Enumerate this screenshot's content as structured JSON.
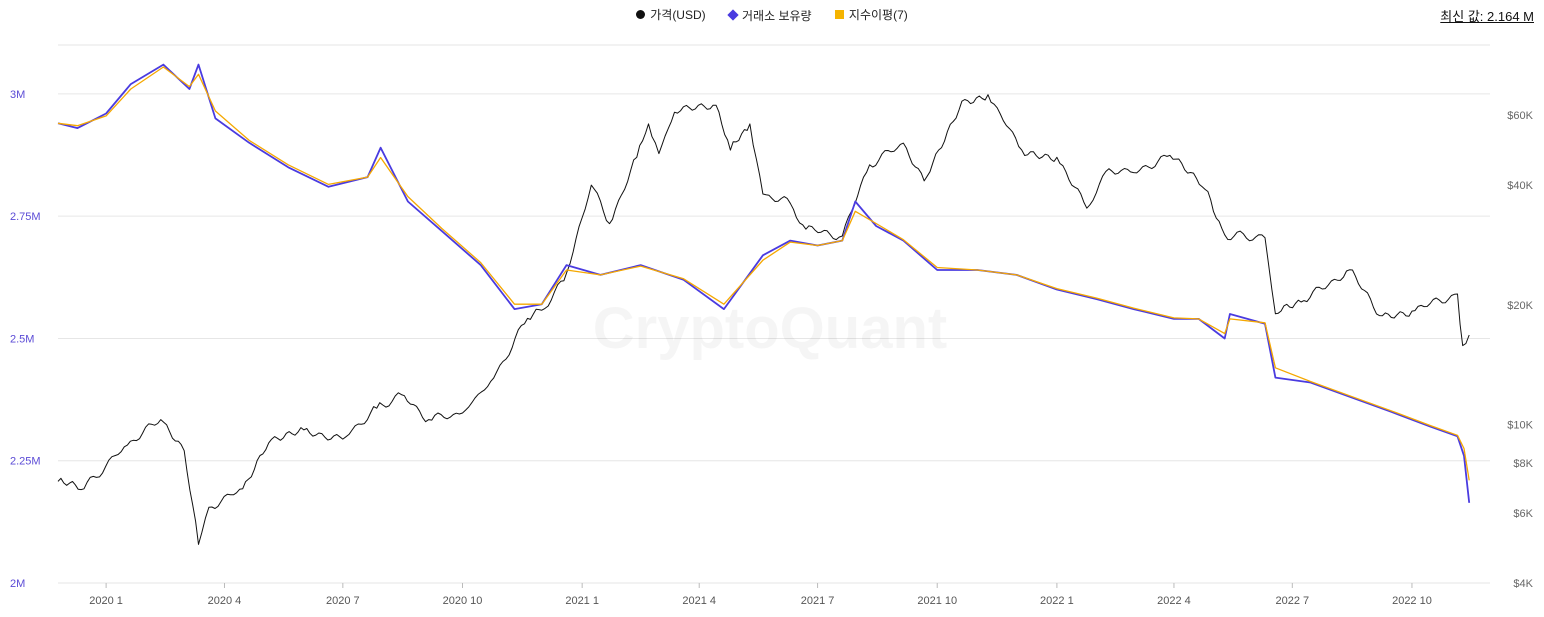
{
  "legend": {
    "price_label": "가격(USD)",
    "reserve_label": "거래소 보유량",
    "ema_label": "지수이평(7)"
  },
  "latest_value": "최신 값: 2.164 M",
  "watermark": "CryptoQuant",
  "colors": {
    "price": "#111111",
    "reserve": "#4a3be0",
    "ema": "#f5a800",
    "grid": "#e6e6e6",
    "left_axis": "#5b4bd6"
  },
  "chart_data": {
    "type": "line",
    "x_ticks": [
      "2020 1",
      "2020 4",
      "2020 7",
      "2020 10",
      "2021 1",
      "2021 4",
      "2021 7",
      "2021 10",
      "2022 1",
      "2022 4",
      "2022 7",
      "2022 10"
    ],
    "y_left": {
      "ticks": [
        "2M",
        "2.25M",
        "2.5M",
        "2.75M",
        "3M"
      ],
      "range": [
        2000000,
        3100000
      ]
    },
    "y_right": {
      "ticks": [
        "$4K",
        "$6K",
        "$8K",
        "$10K",
        "$20K",
        "$40K",
        "$60K"
      ],
      "scale": "log",
      "range": [
        4000,
        90000
      ]
    },
    "x_range": [
      "2019-11-25",
      "2022-11-30"
    ],
    "series": [
      {
        "name": "가격(USD)",
        "axis": "right",
        "points": [
          [
            "2019-11-25",
            7200
          ],
          [
            "2019-12-15",
            6900
          ],
          [
            "2020-01-15",
            8800
          ],
          [
            "2020-02-12",
            10300
          ],
          [
            "2020-03-01",
            8600
          ],
          [
            "2020-03-12",
            5000
          ],
          [
            "2020-03-20",
            6200
          ],
          [
            "2020-04-15",
            6900
          ],
          [
            "2020-05-05",
            9000
          ],
          [
            "2020-06-01",
            9700
          ],
          [
            "2020-07-01",
            9200
          ],
          [
            "2020-07-27",
            11000
          ],
          [
            "2020-08-15",
            11900
          ],
          [
            "2020-09-05",
            10300
          ],
          [
            "2020-10-01",
            10700
          ],
          [
            "2020-10-25",
            13100
          ],
          [
            "2020-11-20",
            18500
          ],
          [
            "2020-12-01",
            19400
          ],
          [
            "2020-12-18",
            23000
          ],
          [
            "2021-01-08",
            40000
          ],
          [
            "2021-01-22",
            32000
          ],
          [
            "2021-02-12",
            47000
          ],
          [
            "2021-02-21",
            57000
          ],
          [
            "2021-03-01",
            48000
          ],
          [
            "2021-03-13",
            61000
          ],
          [
            "2021-04-14",
            63500
          ],
          [
            "2021-04-25",
            49000
          ],
          [
            "2021-05-10",
            57000
          ],
          [
            "2021-05-20",
            38000
          ],
          [
            "2021-06-10",
            36000
          ],
          [
            "2021-06-22",
            31000
          ],
          [
            "2021-07-20",
            29800
          ],
          [
            "2021-08-10",
            45000
          ],
          [
            "2021-09-05",
            51000
          ],
          [
            "2021-09-21",
            41000
          ],
          [
            "2021-10-20",
            65000
          ],
          [
            "2021-11-09",
            67500
          ],
          [
            "2021-12-05",
            49000
          ],
          [
            "2022-01-01",
            47000
          ],
          [
            "2022-01-24",
            35000
          ],
          [
            "2022-02-10",
            44000
          ],
          [
            "2022-03-01",
            43000
          ],
          [
            "2022-03-29",
            47500
          ],
          [
            "2022-04-25",
            39000
          ],
          [
            "2022-05-10",
            30000
          ],
          [
            "2022-06-10",
            29500
          ],
          [
            "2022-06-18",
            19000
          ],
          [
            "2022-07-10",
            20500
          ],
          [
            "2022-08-14",
            24500
          ],
          [
            "2022-09-06",
            18800
          ],
          [
            "2022-10-01",
            19300
          ],
          [
            "2022-11-05",
            21300
          ],
          [
            "2022-11-09",
            15800
          ],
          [
            "2022-11-14",
            16800
          ]
        ]
      },
      {
        "name": "거래소 보유량",
        "axis": "left",
        "points": [
          [
            "2019-11-25",
            2940000
          ],
          [
            "2019-12-10",
            2930000
          ],
          [
            "2020-01-01",
            2960000
          ],
          [
            "2020-01-20",
            3020000
          ],
          [
            "2020-02-14",
            3060000
          ],
          [
            "2020-03-05",
            3010000
          ],
          [
            "2020-03-12",
            3060000
          ],
          [
            "2020-03-25",
            2950000
          ],
          [
            "2020-04-20",
            2900000
          ],
          [
            "2020-05-20",
            2850000
          ],
          [
            "2020-06-20",
            2810000
          ],
          [
            "2020-07-20",
            2830000
          ],
          [
            "2020-07-30",
            2890000
          ],
          [
            "2020-08-20",
            2780000
          ],
          [
            "2020-09-15",
            2720000
          ],
          [
            "2020-10-15",
            2650000
          ],
          [
            "2020-11-10",
            2560000
          ],
          [
            "2020-12-01",
            2570000
          ],
          [
            "2020-12-20",
            2650000
          ],
          [
            "2021-01-15",
            2630000
          ],
          [
            "2021-02-15",
            2650000
          ],
          [
            "2021-03-20",
            2620000
          ],
          [
            "2021-04-20",
            2560000
          ],
          [
            "2021-05-20",
            2670000
          ],
          [
            "2021-06-10",
            2700000
          ],
          [
            "2021-07-01",
            2690000
          ],
          [
            "2021-07-20",
            2700000
          ],
          [
            "2021-07-30",
            2780000
          ],
          [
            "2021-08-15",
            2730000
          ],
          [
            "2021-09-05",
            2700000
          ],
          [
            "2021-10-01",
            2640000
          ],
          [
            "2021-11-01",
            2640000
          ],
          [
            "2021-12-01",
            2630000
          ],
          [
            "2022-01-01",
            2600000
          ],
          [
            "2022-02-01",
            2580000
          ],
          [
            "2022-03-01",
            2560000
          ],
          [
            "2022-04-01",
            2540000
          ],
          [
            "2022-04-20",
            2540000
          ],
          [
            "2022-05-10",
            2500000
          ],
          [
            "2022-05-14",
            2550000
          ],
          [
            "2022-06-10",
            2530000
          ],
          [
            "2022-06-18",
            2420000
          ],
          [
            "2022-07-15",
            2410000
          ],
          [
            "2022-08-15",
            2380000
          ],
          [
            "2022-09-15",
            2350000
          ],
          [
            "2022-10-15",
            2320000
          ],
          [
            "2022-11-05",
            2300000
          ],
          [
            "2022-11-10",
            2260000
          ],
          [
            "2022-11-14",
            2164000
          ]
        ]
      },
      {
        "name": "지수이평(7)",
        "axis": "left",
        "points": [
          [
            "2019-11-25",
            2940000
          ],
          [
            "2019-12-10",
            2935000
          ],
          [
            "2020-01-01",
            2955000
          ],
          [
            "2020-01-20",
            3010000
          ],
          [
            "2020-02-14",
            3055000
          ],
          [
            "2020-03-05",
            3015000
          ],
          [
            "2020-03-12",
            3040000
          ],
          [
            "2020-03-25",
            2965000
          ],
          [
            "2020-04-20",
            2905000
          ],
          [
            "2020-05-20",
            2855000
          ],
          [
            "2020-06-20",
            2815000
          ],
          [
            "2020-07-20",
            2830000
          ],
          [
            "2020-07-30",
            2870000
          ],
          [
            "2020-08-20",
            2790000
          ],
          [
            "2020-09-15",
            2725000
          ],
          [
            "2020-10-15",
            2655000
          ],
          [
            "2020-11-10",
            2570000
          ],
          [
            "2020-12-01",
            2570000
          ],
          [
            "2020-12-20",
            2640000
          ],
          [
            "2021-01-15",
            2630000
          ],
          [
            "2021-02-15",
            2648000
          ],
          [
            "2021-03-20",
            2622000
          ],
          [
            "2021-04-20",
            2570000
          ],
          [
            "2021-05-20",
            2660000
          ],
          [
            "2021-06-10",
            2697000
          ],
          [
            "2021-07-01",
            2690000
          ],
          [
            "2021-07-20",
            2700000
          ],
          [
            "2021-07-30",
            2760000
          ],
          [
            "2021-08-15",
            2735000
          ],
          [
            "2021-09-05",
            2702000
          ],
          [
            "2021-10-01",
            2645000
          ],
          [
            "2021-11-01",
            2640000
          ],
          [
            "2021-12-01",
            2630000
          ],
          [
            "2022-01-01",
            2602000
          ],
          [
            "2022-02-01",
            2582000
          ],
          [
            "2022-03-01",
            2562000
          ],
          [
            "2022-04-01",
            2542000
          ],
          [
            "2022-04-20",
            2540000
          ],
          [
            "2022-05-10",
            2510000
          ],
          [
            "2022-05-14",
            2540000
          ],
          [
            "2022-06-10",
            2532000
          ],
          [
            "2022-06-18",
            2440000
          ],
          [
            "2022-07-15",
            2412000
          ],
          [
            "2022-08-15",
            2382000
          ],
          [
            "2022-09-15",
            2352000
          ],
          [
            "2022-10-15",
            2322000
          ],
          [
            "2022-11-05",
            2302000
          ],
          [
            "2022-11-10",
            2275000
          ],
          [
            "2022-11-14",
            2210000
          ]
        ]
      }
    ],
    "grid": true,
    "legend_position": "top-center"
  }
}
